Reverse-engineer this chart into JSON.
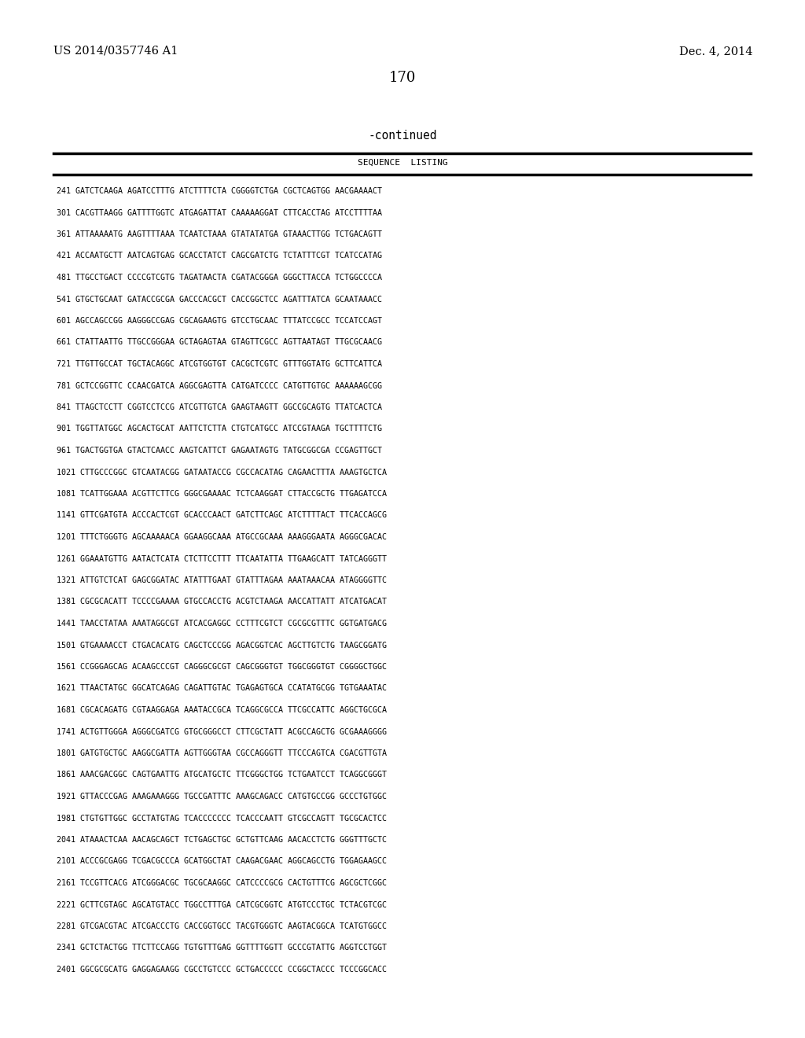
{
  "header_left": "US 2014/0357746 A1",
  "header_right": "Dec. 4, 2014",
  "page_number": "170",
  "continued": "-continued",
  "table_title": "SEQUENCE  LISTING",
  "sequence_lines": [
    "241 GATCTCAAGA AGATCCTTTG ATCTTTTCTA CGGGGTCTGA CGCTCAGTGG AACGAAAACT",
    "301 CACGTTAAGG GATTTTGGTC ATGAGATTAT CAAAAAGGAT CTTCACCTAG ATCCTTTTAA",
    "361 ATTAAAAATG AAGTTTTAAA TCAATCTAAA GTATATATGA GTAAACTTGG TCTGACAGTT",
    "421 ACCAATGCTT AATCAGTGAG GCACCTATCT CAGCGATCTG TCTATTTCGT TCATCCATAG",
    "481 TTGCCTGACT CCCCGTCGTG TAGATAACTA CGATACGGGA GGGCTTACCA TCTGGCCCCA",
    "541 GTGCTGCAAT GATACCGCGA GACCCACGCT CACCGGCTCC AGATTTATCA GCAATAAACC",
    "601 AGCCAGCCGG AAGGGCCGAG CGCAGAAGTG GTCCTGCAAC TTTATCCGCC TCCATCCAGT",
    "661 CTATTAATTG TTGCCGGGAA GCTAGAGTAA GTAGTTCGCC AGTTAATAGT TTGCGCAACG",
    "721 TTGTTGCCAT TGCTACAGGC ATCGTGGTGT CACGCTCGTC GTTTGGTATG GCTTCATTCA",
    "781 GCTCCGGTTC CCAACGATCA AGGCGAGTTA CATGATCCCC CATGTTGTGC AAAAAAGCGG",
    "841 TTAGCTCCTT CGGTCCTCCG ATCGTTGTCA GAAGTAAGTT GGCCGCAGTG TTATCACTCA",
    "901 TGGTTATGGC AGCACTGCAT AATTCTCTTA CTGTCATGCC ATCCGTAAGA TGCTTTTCTG",
    "961 TGACTGGTGA GTACTCAACC AAGTCATTCT GAGAATAGTG TATGCGGCGA CCGAGTTGCT",
    "1021 CTTGCCCGGC GTCAATACGG GATAATACCG CGCCACATAG CAGAACTTTA AAAGTGCTCA",
    "1081 TCATTGGAAA ACGTTCTTCG GGGCGAAAAC TCTCAAGGAT CTTACCGCTG TTGAGATCCA",
    "1141 GTTCGATGTA ACCCACTCGT GCACCCAACT GATCTTCAGC ATCTTTTACT TTCACCAGCG",
    "1201 TTTCTGGGTG AGCAAAAACA GGAAGGCAAA ATGCCGCAAA AAAGGGAATA AGGGCGACAC",
    "1261 GGAAATGTTG AATACTCATA CTCTTCCTTT TTCAATATTA TTGAAGCATT TATCAGGGTT",
    "1321 ATTGTCTCAT GAGCGGATAC ATATTTGAAT GTATTTAGAA AAATAAACAA ATAGGGGTTC",
    "1381 CGCGCACATT TCCCCGAAAA GTGCCACCTG ACGTCTAAGA AACCATTATT ATCATGACAT",
    "1441 TAACCTATAA AAATAGGCGT ATCACGAGGC CCTTTCGTCT CGCGCGTTTC GGTGATGACG",
    "1501 GTGAAAACCT CTGACACATG CAGCTCCCGG AGACGGTCAC AGCTTGTCTG TAAGCGGATG",
    "1561 CCGGGAGCAG ACAAGCCCGT CAGGGCGCGT CAGCGGGTGT TGGCGGGTGT CGGGGCTGGC",
    "1621 TTAACTATGC GGCATCAGAG CAGATTGTAC TGAGAGTGCA CCATATGCGG TGTGAAATAC",
    "1681 CGCACAGATG CGTAAGGAGA AAATACCGCA TCAGGCGCCA TTCGCCATTC AGGCTGCGCA",
    "1741 ACTGTTGGGA AGGGCGATCG GTGCGGGCCT CTTCGCTATT ACGCCAGCTG GCGAAAGGGG",
    "1801 GATGTGCTGC AAGGCGATTA AGTTGGGTAA CGCCAGGGTT TTCCCAGTCA CGACGTTGTA",
    "1861 AAACGACGGC CAGTGAATTG ATGCATGCTC TTCGGGCTGG TCTGAATCCT TCAGGCGGGT",
    "1921 GTTACCCGAG AAAGAAAGGG TGCCGATTTC AAAGCAGACC CATGTGCCGG GCCCTGTGGC",
    "1981 CTGTGTTGGC GCCTATGTAG TCACCCCCCC TCACCCAATT GTCGCCAGTT TGCGCACTCC",
    "2041 ATAAACTCAA AACAGCAGCT TCTGAGCTGC GCTGTTCAAG AACACCTCTG GGGTTTGCTC",
    "2101 ACCCGCGAGG TCGACGCCCA GCATGGCTAT CAAGACGAAC AGGCAGCCTG TGGAGAAGCC",
    "2161 TCCGTTCACG ATCGGGACGC TGCGCAAGGC CATCCCCGCG CACTGTTTCG AGCGCTCGGC",
    "2221 GCTTCGTAGC AGCATGTACC TGGCCTTTGA CATCGCGGTC ATGTCCCTGC TCTACGTCGC",
    "2281 GTCGACGTAC ATCGACCCTG CACCGGTGCC TACGTGGGTC AAGTACGGCA TCATGTGGCC",
    "2341 GCTCTACTGG TTCTTCCAGG TGTGTTTGAG GGTTTTGGTT GCCCGTATTG AGGTCCTGGT",
    "2401 GGCGCGCATG GAGGAGAAGG CGCCTGTCCC GCTGACCCCC CCGGCTACCC TCCCGGCACC"
  ],
  "bg_color": "#ffffff",
  "text_color": "#000000"
}
